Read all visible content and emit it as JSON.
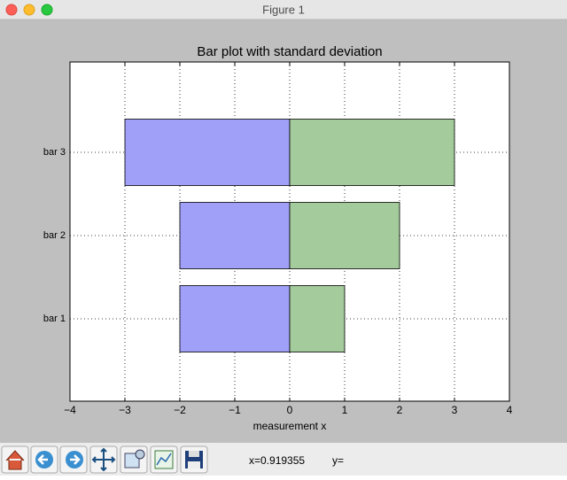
{
  "window": {
    "title": "Figure 1"
  },
  "chart_data": {
    "type": "barh",
    "title": "Bar plot with standard deviation",
    "xlabel": "measurement x",
    "categories": [
      "bar 1",
      "bar 2",
      "bar 3"
    ],
    "series": [
      {
        "color": "#a0a0f8",
        "values": [
          -2,
          -2,
          -3
        ]
      },
      {
        "color": "#a3cb9b",
        "values": [
          1,
          2,
          3
        ]
      }
    ],
    "xlim": [
      -4,
      4
    ],
    "xticks": [
      {
        "value": -4,
        "label": "−4"
      },
      {
        "value": -3,
        "label": "−3"
      },
      {
        "value": -2,
        "label": "−2"
      },
      {
        "value": -1,
        "label": "−1"
      },
      0,
      1,
      2,
      3,
      4
    ],
    "grid": true
  },
  "status": {
    "x": "x=0.919355",
    "y": "y="
  }
}
